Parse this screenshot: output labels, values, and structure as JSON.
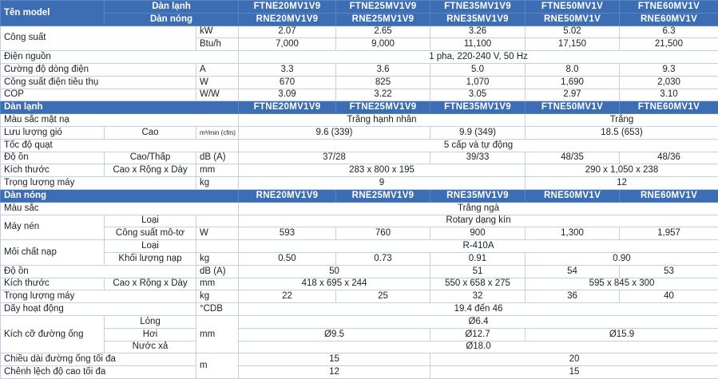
{
  "header": {
    "title": "Tên model",
    "indoor": "Dàn lạnh",
    "outdoor": "Dàn nóng",
    "indoor_models": [
      "FTNE20MV1V9",
      "FTNE25MV1V9",
      "FTNE35MV1V9",
      "FTNE50MV1V",
      "FTNE60MV1V"
    ],
    "outdoor_models": [
      "RNE20MV1V9",
      "RNE25MV1V9",
      "RNE35MV1V9",
      "RNE50MV1V",
      "RNE60MV1V"
    ]
  },
  "general": [
    {
      "label": "Công suất",
      "unit": "kW",
      "values": [
        "2.07",
        "2.65",
        "3.26",
        "5.02",
        "6.3"
      ]
    },
    {
      "unit": "Btu/h",
      "values": [
        "7,000",
        "9,000",
        "11,100",
        "17,150",
        "21,500"
      ]
    },
    {
      "label": "Điện nguồn",
      "values": [
        "1 pha, 220-240 V, 50 Hz"
      ]
    },
    {
      "label": "Cường độ dòng điện",
      "unit": "A",
      "values": [
        "3.3",
        "3.6",
        "5.0",
        "8.0",
        "9.3"
      ]
    },
    {
      "label": "Công suất điện tiêu thụ",
      "unit": "W",
      "values": [
        "670",
        "825",
        "1,070",
        "1,690",
        "2,030"
      ]
    },
    {
      "label": "COP",
      "unit": "W/W",
      "values": [
        "3.09",
        "3.22",
        "3.05",
        "2.97",
        "3.10"
      ]
    }
  ],
  "indoor": [
    {
      "label": "Màu sắc mặt nạ",
      "values": [
        "Trắng hạnh nhân",
        "Trắng"
      ]
    },
    {
      "label": "Lưu lượng gió",
      "sub": "Cao",
      "unit": "m³/min (cfm)",
      "values": [
        "9.6 (339)",
        "9.9 (349)",
        "18.5 (653)"
      ]
    },
    {
      "label": "Tốc độ quạt",
      "values": [
        "5 cấp và tự động"
      ]
    },
    {
      "label": "Độ ồn",
      "sub": "Cao/Thấp",
      "unit": "dB (A)",
      "values": [
        "37/28",
        "39/33",
        "48/35",
        "48/36"
      ]
    },
    {
      "label": "Kích thước",
      "sub": "Cao x Rộng x Dày",
      "unit": "mm",
      "values": [
        "283 x 800 x 195",
        "290 x 1,050 x 238"
      ]
    },
    {
      "label": "Trọng lượng máy",
      "unit": "kg",
      "values": [
        "9",
        "12"
      ]
    }
  ],
  "outdoor": [
    {
      "label": "Màu sắc",
      "values": [
        "Trắng ngà"
      ]
    },
    {
      "label": "Máy nén",
      "sub": "Loại",
      "values": [
        "Rotary dạng kín"
      ]
    },
    {
      "sub": "Công suất mô-tơ",
      "unit": "W",
      "values": [
        "593",
        "760",
        "900",
        "1,300",
        "1,957"
      ]
    },
    {
      "label": "Môi chất nạp",
      "sub": "Loại",
      "values": [
        "R-410A"
      ]
    },
    {
      "sub": "Khối lượng nạp",
      "unit": "kg",
      "values": [
        "0.50",
        "0.73",
        "0.91",
        "0.90"
      ]
    },
    {
      "label": "Độ ồn",
      "unit": "dB (A)",
      "values": [
        "50",
        "51",
        "54",
        "53"
      ]
    },
    {
      "label": "Kích thước",
      "sub": "Cao x Rộng x Dày",
      "unit": "mm",
      "values": [
        "418 x 695 x 244",
        "550 x 658 x 275",
        "595 x 845 x 300"
      ]
    },
    {
      "label": "Trọng lượng máy",
      "unit": "kg",
      "values": [
        "22",
        "25",
        "32",
        "36",
        "40"
      ]
    },
    {
      "label": "Dãy hoạt động",
      "unit": "°CDB",
      "values": [
        "19.4 đến 46"
      ]
    },
    {
      "label": "Kích cỡ đường ống",
      "sub": "Lỏng",
      "unit": "mm",
      "values": [
        "Ø6.4"
      ]
    },
    {
      "sub": "Hơi",
      "values": [
        "Ø9.5",
        "Ø12.7",
        "Ø15.9"
      ]
    },
    {
      "sub": "Nước xả",
      "values": [
        "Ø18.0"
      ]
    },
    {
      "label": "Chiều dài đường ống tối đa",
      "unit": "m",
      "values": [
        "15",
        "20"
      ]
    },
    {
      "label": "Chênh lệch độ cao tối đa",
      "values": [
        "12",
        "15"
      ]
    }
  ]
}
